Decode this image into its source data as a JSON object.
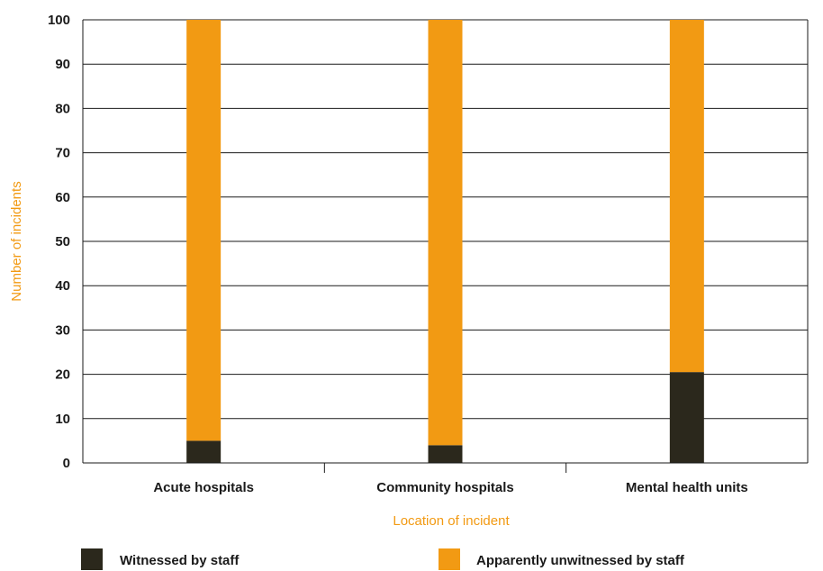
{
  "chart_data": {
    "type": "bar",
    "stacked": true,
    "categories": [
      "Acute hospitals",
      "Community hospitals",
      "Mental health units"
    ],
    "series": [
      {
        "name": "Witnessed by staff",
        "values": [
          5,
          4,
          20.5
        ],
        "color": "#2b281c"
      },
      {
        "name": "Apparently unwitnessed by staff",
        "values": [
          95,
          96,
          79.5
        ],
        "color": "#f29a13"
      }
    ],
    "xlabel": "Location of incident",
    "ylabel": "Number of incidents",
    "ylim": [
      0,
      100
    ],
    "yticks": [
      0,
      10,
      20,
      30,
      40,
      50,
      60,
      70,
      80,
      90,
      100
    ],
    "grid": true,
    "legend_position": "bottom",
    "axis_title_color": "#f29a13"
  }
}
